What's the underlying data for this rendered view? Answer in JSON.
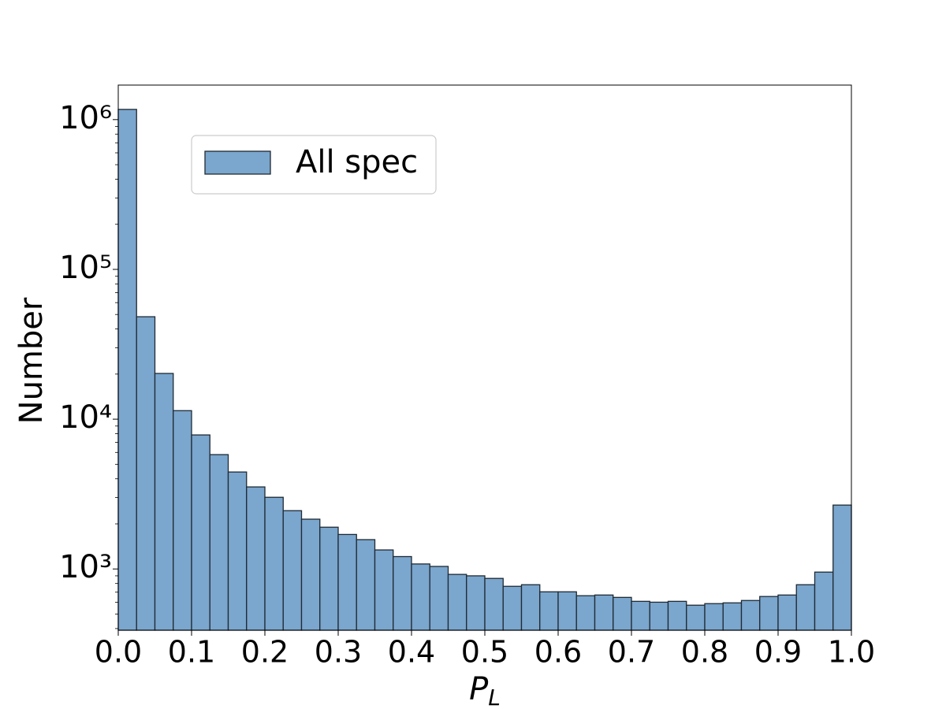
{
  "chart_data": {
    "type": "histogram",
    "xlabel": [
      "P",
      "L"
    ],
    "ylabel": "Number",
    "bins": [
      0,
      0.025,
      0.05,
      0.075,
      0.1,
      0.125,
      0.15,
      0.175,
      0.2,
      0.225,
      0.25,
      0.275,
      0.3,
      0.325,
      0.35,
      0.375,
      0.4,
      0.425,
      0.45,
      0.475,
      0.5,
      0.525,
      0.55,
      0.575,
      0.6,
      0.625,
      0.65,
      0.675,
      0.7,
      0.725,
      0.75,
      0.775,
      0.8,
      0.825,
      0.85,
      0.875,
      0.9,
      0.925,
      0.95,
      0.975,
      1
    ],
    "series": [
      {
        "name": "All spec",
        "color": "#7ba6cd",
        "edgecolor": "#1f2a33",
        "values": [
          1170000,
          48300,
          20200,
          11400,
          7850,
          5800,
          4440,
          3530,
          3010,
          2450,
          2150,
          1900,
          1700,
          1570,
          1340,
          1210,
          1080,
          1040,
          920,
          900,
          865,
          766,
          785,
          704,
          704,
          663,
          670,
          646,
          608,
          600,
          608,
          573,
          587,
          594,
          616,
          655,
          670,
          785,
          953,
          2670
        ]
      }
    ],
    "xlim": [
      0,
      1
    ],
    "xticks": [
      {
        "value": 0,
        "label": "0.0"
      },
      0.1,
      0.2,
      0.3,
      0.4,
      0.5,
      0.6,
      0.7,
      0.8,
      0.9,
      {
        "value": 1,
        "label": "1.0"
      }
    ],
    "ylim": [
      390,
      1700000
    ],
    "yscale": "log",
    "yticks": [
      {
        "value": 1000,
        "label": "10³"
      },
      {
        "value": 10000,
        "label": "10⁴"
      },
      {
        "value": 100000,
        "label": "10⁵"
      },
      {
        "value": 1000000,
        "label": "10⁶"
      }
    ],
    "yminorticks": [
      400,
      500,
      600,
      700,
      800,
      900,
      2000,
      3000,
      4000,
      5000,
      6000,
      7000,
      8000,
      9000,
      20000,
      30000,
      40000,
      50000,
      60000,
      70000,
      80000,
      90000,
      200000,
      300000,
      400000,
      500000,
      600000,
      700000,
      800000,
      900000
    ],
    "legend": "upper left"
  }
}
